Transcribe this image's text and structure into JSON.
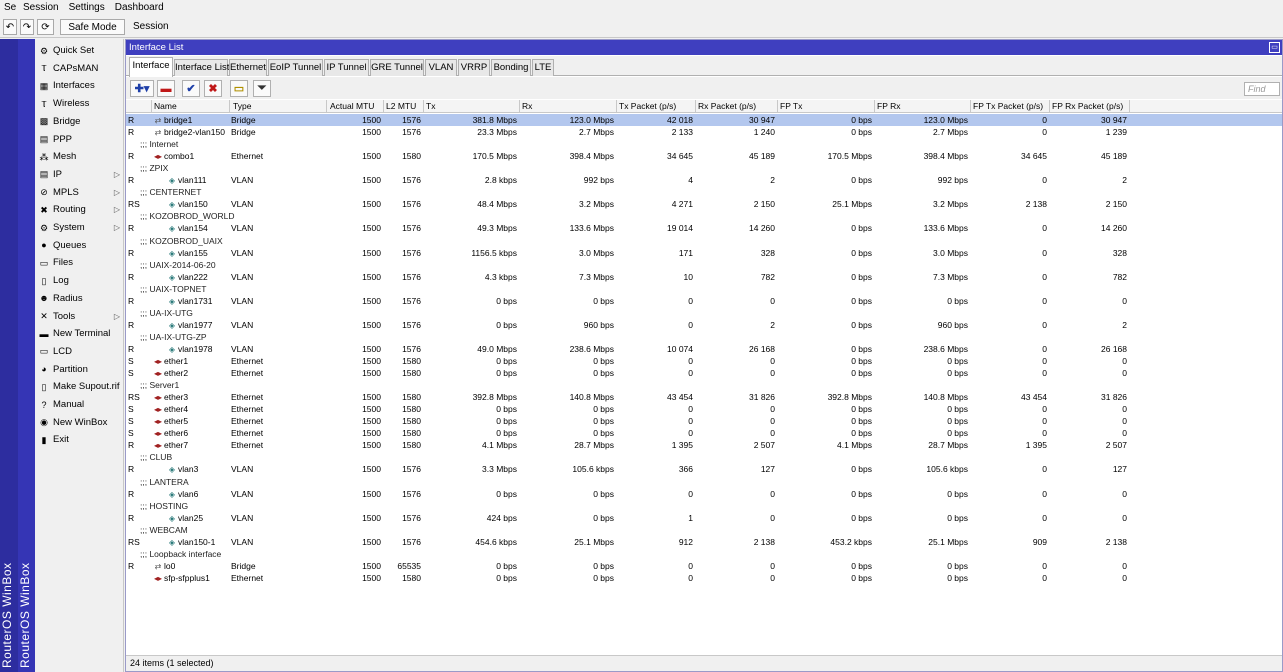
{
  "menubar": {
    "items": [
      "Se",
      "Session",
      "Settings",
      "Dashboard"
    ]
  },
  "toolbar": {
    "safe_mode": "Safe Mode",
    "session": "Session"
  },
  "brand": {
    "vertical_text": "RouterOS WinBox"
  },
  "sidebar": {
    "items": [
      {
        "label": "Quick Set",
        "icon": "quickset-icon",
        "glyph": "⚙"
      },
      {
        "label": "CAPsMAN",
        "icon": "capsman-icon",
        "glyph": "Ⲧ"
      },
      {
        "label": "Interfaces",
        "icon": "interfaces-icon",
        "glyph": "▦"
      },
      {
        "label": "Wireless",
        "icon": "wireless-icon",
        "glyph": "Ⲧ"
      },
      {
        "label": "Bridge",
        "icon": "bridge-icon",
        "glyph": "▩"
      },
      {
        "label": "PPP",
        "icon": "ppp-icon",
        "glyph": "▤"
      },
      {
        "label": "Mesh",
        "icon": "mesh-icon",
        "glyph": "⁂"
      },
      {
        "label": "IP",
        "icon": "ip-icon",
        "glyph": "▤",
        "submenu": true
      },
      {
        "label": "MPLS",
        "icon": "mpls-icon",
        "glyph": "⊘",
        "submenu": true
      },
      {
        "label": "Routing",
        "icon": "routing-icon",
        "glyph": "✖",
        "submenu": true
      },
      {
        "label": "System",
        "icon": "system-icon",
        "glyph": "⚙",
        "submenu": true
      },
      {
        "label": "Queues",
        "icon": "queues-icon",
        "glyph": "●"
      },
      {
        "label": "Files",
        "icon": "files-icon",
        "glyph": "▭"
      },
      {
        "label": "Log",
        "icon": "log-icon",
        "glyph": "▯"
      },
      {
        "label": "Radius",
        "icon": "radius-icon",
        "glyph": "☻"
      },
      {
        "label": "Tools",
        "icon": "tools-icon",
        "glyph": "✕",
        "submenu": true
      },
      {
        "label": "New Terminal",
        "icon": "terminal-icon",
        "glyph": "▬"
      },
      {
        "label": "LCD",
        "icon": "lcd-icon",
        "glyph": "▭"
      },
      {
        "label": "Partition",
        "icon": "partition-icon",
        "glyph": "◕"
      },
      {
        "label": "Make Supout.rif",
        "icon": "supout-icon",
        "glyph": "▯"
      },
      {
        "label": "Manual",
        "icon": "manual-icon",
        "glyph": "?"
      },
      {
        "label": "New WinBox",
        "icon": "winbox-icon",
        "glyph": "◉"
      },
      {
        "label": "Exit",
        "icon": "exit-icon",
        "glyph": "▮"
      }
    ]
  },
  "window": {
    "title": "Interface List",
    "tabs": [
      "Interface",
      "Interface List",
      "Ethernet",
      "EoIP Tunnel",
      "IP Tunnel",
      "GRE Tunnel",
      "VLAN",
      "VRRP",
      "Bonding",
      "LTE"
    ],
    "find_placeholder": "Find",
    "status": "24 items (1 selected)"
  },
  "columns": [
    "",
    "Name",
    "Type",
    "Actual MTU",
    "L2 MTU",
    "Tx",
    "Rx",
    "Tx Packet (p/s)",
    "Rx Packet (p/s)",
    "FP Tx",
    "FP Rx",
    "FP Tx Packet (p/s)",
    "FP Rx Packet (p/s)"
  ],
  "rows": [
    {
      "flag": "R",
      "name": "bridge1",
      "kind": "br",
      "type": "Bridge",
      "mtu": "1500",
      "l2": "1576",
      "tx": "381.8 Mbps",
      "rx": "123.0 Mbps",
      "txp": "42 018",
      "rxp": "30 947",
      "fptx": "0 bps",
      "fprx": "123.0 Mbps",
      "fptxp": "0",
      "fprxp": "30 947",
      "selected": true
    },
    {
      "flag": "R",
      "name": "bridge2-vlan150",
      "kind": "br",
      "type": "Bridge",
      "mtu": "1500",
      "l2": "1576",
      "tx": "23.3 Mbps",
      "rx": "2.7 Mbps",
      "txp": "2 133",
      "rxp": "1 240",
      "fptx": "0 bps",
      "fprx": "2.7 Mbps",
      "fptxp": "0",
      "fprxp": "1 239"
    },
    {
      "comment": ";;; Internet"
    },
    {
      "flag": "R",
      "name": "combo1",
      "kind": "eth",
      "type": "Ethernet",
      "mtu": "1500",
      "l2": "1580",
      "tx": "170.5 Mbps",
      "rx": "398.4 Mbps",
      "txp": "34 645",
      "rxp": "45 189",
      "fptx": "170.5 Mbps",
      "fprx": "398.4 Mbps",
      "fptxp": "34 645",
      "fprxp": "45 189"
    },
    {
      "comment": ";;; ZPIX"
    },
    {
      "flag": "R",
      "name": "vlan111",
      "kind": "vl",
      "indent": true,
      "type": "VLAN",
      "mtu": "1500",
      "l2": "1576",
      "tx": "2.8 kbps",
      "rx": "992 bps",
      "txp": "4",
      "rxp": "2",
      "fptx": "0 bps",
      "fprx": "992 bps",
      "fptxp": "0",
      "fprxp": "2"
    },
    {
      "comment": ";;; CENTERNET"
    },
    {
      "flag": "RS",
      "name": "vlan150",
      "kind": "vl",
      "indent": true,
      "type": "VLAN",
      "mtu": "1500",
      "l2": "1576",
      "tx": "48.4 Mbps",
      "rx": "3.2 Mbps",
      "txp": "4 271",
      "rxp": "2 150",
      "fptx": "25.1 Mbps",
      "fprx": "3.2 Mbps",
      "fptxp": "2 138",
      "fprxp": "2 150"
    },
    {
      "comment": ";;; KOZOBROD_WORLD"
    },
    {
      "flag": "R",
      "name": "vlan154",
      "kind": "vl",
      "indent": true,
      "type": "VLAN",
      "mtu": "1500",
      "l2": "1576",
      "tx": "49.3 Mbps",
      "rx": "133.6 Mbps",
      "txp": "19 014",
      "rxp": "14 260",
      "fptx": "0 bps",
      "fprx": "133.6 Mbps",
      "fptxp": "0",
      "fprxp": "14 260"
    },
    {
      "comment": ";;; KOZOBROD_UAIX"
    },
    {
      "flag": "R",
      "name": "vlan155",
      "kind": "vl",
      "indent": true,
      "type": "VLAN",
      "mtu": "1500",
      "l2": "1576",
      "tx": "1156.5 kbps",
      "rx": "3.0 Mbps",
      "txp": "171",
      "rxp": "328",
      "fptx": "0 bps",
      "fprx": "3.0 Mbps",
      "fptxp": "0",
      "fprxp": "328"
    },
    {
      "comment": ";;; UAIX-2014-06-20"
    },
    {
      "flag": "R",
      "name": "vlan222",
      "kind": "vl",
      "indent": true,
      "type": "VLAN",
      "mtu": "1500",
      "l2": "1576",
      "tx": "4.3 kbps",
      "rx": "7.3 Mbps",
      "txp": "10",
      "rxp": "782",
      "fptx": "0 bps",
      "fprx": "7.3 Mbps",
      "fptxp": "0",
      "fprxp": "782"
    },
    {
      "comment": ";;; UAIX-TOPNET"
    },
    {
      "flag": "R",
      "name": "vlan1731",
      "kind": "vl",
      "indent": true,
      "type": "VLAN",
      "mtu": "1500",
      "l2": "1576",
      "tx": "0 bps",
      "rx": "0 bps",
      "txp": "0",
      "rxp": "0",
      "fptx": "0 bps",
      "fprx": "0 bps",
      "fptxp": "0",
      "fprxp": "0"
    },
    {
      "comment": ";;; UA-IX-UTG"
    },
    {
      "flag": "R",
      "name": "vlan1977",
      "kind": "vl",
      "indent": true,
      "type": "VLAN",
      "mtu": "1500",
      "l2": "1576",
      "tx": "0 bps",
      "rx": "960 bps",
      "txp": "0",
      "rxp": "2",
      "fptx": "0 bps",
      "fprx": "960 bps",
      "fptxp": "0",
      "fprxp": "2"
    },
    {
      "comment": ";;; UA-IX-UTG-ZP"
    },
    {
      "flag": "R",
      "name": "vlan1978",
      "kind": "vl",
      "indent": true,
      "type": "VLAN",
      "mtu": "1500",
      "l2": "1576",
      "tx": "49.0 Mbps",
      "rx": "238.6 Mbps",
      "txp": "10 074",
      "rxp": "26 168",
      "fptx": "0 bps",
      "fprx": "238.6 Mbps",
      "fptxp": "0",
      "fprxp": "26 168"
    },
    {
      "flag": "S",
      "name": "ether1",
      "kind": "eth",
      "type": "Ethernet",
      "mtu": "1500",
      "l2": "1580",
      "tx": "0 bps",
      "rx": "0 bps",
      "txp": "0",
      "rxp": "0",
      "fptx": "0 bps",
      "fprx": "0 bps",
      "fptxp": "0",
      "fprxp": "0"
    },
    {
      "flag": "S",
      "name": "ether2",
      "kind": "eth",
      "type": "Ethernet",
      "mtu": "1500",
      "l2": "1580",
      "tx": "0 bps",
      "rx": "0 bps",
      "txp": "0",
      "rxp": "0",
      "fptx": "0 bps",
      "fprx": "0 bps",
      "fptxp": "0",
      "fprxp": "0"
    },
    {
      "comment": ";;; Server1"
    },
    {
      "flag": "RS",
      "name": "ether3",
      "kind": "eth",
      "type": "Ethernet",
      "mtu": "1500",
      "l2": "1580",
      "tx": "392.8 Mbps",
      "rx": "140.8 Mbps",
      "txp": "43 454",
      "rxp": "31 826",
      "fptx": "392.8 Mbps",
      "fprx": "140.8 Mbps",
      "fptxp": "43 454",
      "fprxp": "31 826"
    },
    {
      "flag": "S",
      "name": "ether4",
      "kind": "eth",
      "type": "Ethernet",
      "mtu": "1500",
      "l2": "1580",
      "tx": "0 bps",
      "rx": "0 bps",
      "txp": "0",
      "rxp": "0",
      "fptx": "0 bps",
      "fprx": "0 bps",
      "fptxp": "0",
      "fprxp": "0"
    },
    {
      "flag": "S",
      "name": "ether5",
      "kind": "eth",
      "type": "Ethernet",
      "mtu": "1500",
      "l2": "1580",
      "tx": "0 bps",
      "rx": "0 bps",
      "txp": "0",
      "rxp": "0",
      "fptx": "0 bps",
      "fprx": "0 bps",
      "fptxp": "0",
      "fprxp": "0"
    },
    {
      "flag": "S",
      "name": "ether6",
      "kind": "eth",
      "type": "Ethernet",
      "mtu": "1500",
      "l2": "1580",
      "tx": "0 bps",
      "rx": "0 bps",
      "txp": "0",
      "rxp": "0",
      "fptx": "0 bps",
      "fprx": "0 bps",
      "fptxp": "0",
      "fprxp": "0"
    },
    {
      "flag": "R",
      "name": "ether7",
      "kind": "eth",
      "type": "Ethernet",
      "mtu": "1500",
      "l2": "1580",
      "tx": "4.1 Mbps",
      "rx": "28.7 Mbps",
      "txp": "1 395",
      "rxp": "2 507",
      "fptx": "4.1 Mbps",
      "fprx": "28.7 Mbps",
      "fptxp": "1 395",
      "fprxp": "2 507"
    },
    {
      "comment": ";;; CLUB"
    },
    {
      "flag": "R",
      "name": "vlan3",
      "kind": "vl",
      "indent": true,
      "type": "VLAN",
      "mtu": "1500",
      "l2": "1576",
      "tx": "3.3 Mbps",
      "rx": "105.6 kbps",
      "txp": "366",
      "rxp": "127",
      "fptx": "0 bps",
      "fprx": "105.6 kbps",
      "fptxp": "0",
      "fprxp": "127"
    },
    {
      "comment": ";;; LANTERA"
    },
    {
      "flag": "R",
      "name": "vlan6",
      "kind": "vl",
      "indent": true,
      "type": "VLAN",
      "mtu": "1500",
      "l2": "1576",
      "tx": "0 bps",
      "rx": "0 bps",
      "txp": "0",
      "rxp": "0",
      "fptx": "0 bps",
      "fprx": "0 bps",
      "fptxp": "0",
      "fprxp": "0"
    },
    {
      "comment": ";;; HOSTING"
    },
    {
      "flag": "R",
      "name": "vlan25",
      "kind": "vl",
      "indent": true,
      "type": "VLAN",
      "mtu": "1500",
      "l2": "1576",
      "tx": "424 bps",
      "rx": "0 bps",
      "txp": "1",
      "rxp": "0",
      "fptx": "0 bps",
      "fprx": "0 bps",
      "fptxp": "0",
      "fprxp": "0"
    },
    {
      "comment": ";;; WEBCAM"
    },
    {
      "flag": "RS",
      "name": "vlan150-1",
      "kind": "vl",
      "indent": true,
      "type": "VLAN",
      "mtu": "1500",
      "l2": "1576",
      "tx": "454.6 kbps",
      "rx": "25.1 Mbps",
      "txp": "912",
      "rxp": "2 138",
      "fptx": "453.2 kbps",
      "fprx": "25.1 Mbps",
      "fptxp": "909",
      "fprxp": "2 138"
    },
    {
      "comment": ";;; Loopback interface"
    },
    {
      "flag": "R",
      "name": "lo0",
      "kind": "br",
      "type": "Bridge",
      "mtu": "1500",
      "l2": "65535",
      "tx": "0 bps",
      "rx": "0 bps",
      "txp": "0",
      "rxp": "0",
      "fptx": "0 bps",
      "fprx": "0 bps",
      "fptxp": "0",
      "fprxp": "0"
    },
    {
      "flag": "",
      "name": "sfp-sfpplus1",
      "kind": "eth",
      "type": "Ethernet",
      "mtu": "1500",
      "l2": "1580",
      "tx": "0 bps",
      "rx": "0 bps",
      "txp": "0",
      "rxp": "0",
      "fptx": "0 bps",
      "fprx": "0 bps",
      "fptxp": "0",
      "fprxp": "0"
    }
  ],
  "colors": {
    "title_bar": "#3f3fbf",
    "brand_bar": "#2d2d9f",
    "selection": "#b3c7ee"
  }
}
